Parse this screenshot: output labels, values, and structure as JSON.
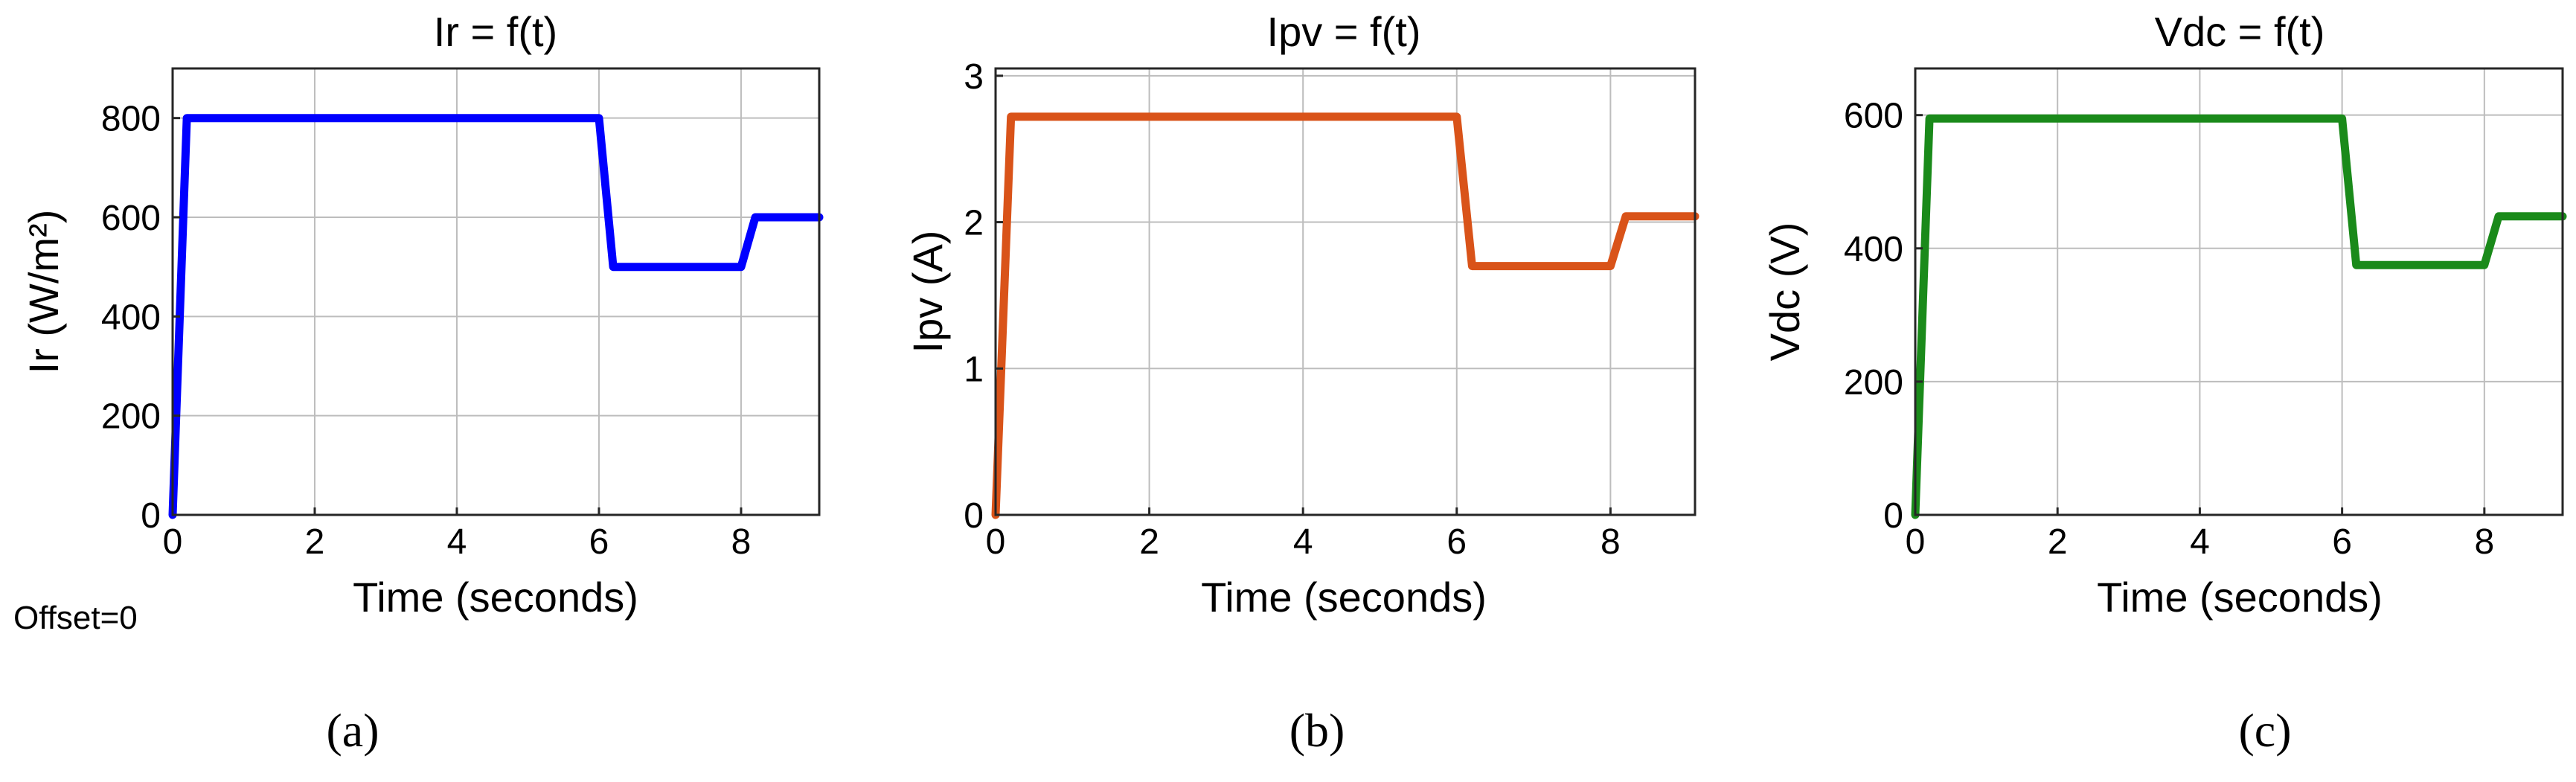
{
  "note": "Offset=0",
  "chart_data": [
    {
      "type": "line",
      "caption": "(a)",
      "title": "Ir = f(t)",
      "xlabel": "Time (seconds)",
      "ylabel": "Ir (W/m²)",
      "xlim": [
        0,
        9.1
      ],
      "ylim": [
        0,
        900
      ],
      "xticks": [
        0,
        2,
        4,
        6,
        8
      ],
      "yticks": [
        0,
        200,
        400,
        600,
        800
      ],
      "grid": true,
      "series": [
        {
          "color": "#0000ff",
          "x": [
            0,
            0.2,
            6.0,
            6.2,
            8.0,
            8.2,
            9.1
          ],
          "y": [
            0,
            800,
            800,
            500,
            500,
            600,
            600
          ]
        }
      ]
    },
    {
      "type": "line",
      "caption": "(b)",
      "title": "Ipv = f(t)",
      "xlabel": "Time (seconds)",
      "ylabel": "Ipv (A)",
      "xlim": [
        0,
        9.1
      ],
      "ylim": [
        0,
        3.05
      ],
      "xticks": [
        0,
        2,
        4,
        6,
        8
      ],
      "yticks": [
        0,
        1,
        2,
        3
      ],
      "grid": true,
      "series": [
        {
          "color": "#d95319",
          "x": [
            0,
            0.2,
            6.0,
            6.2,
            8.0,
            8.2,
            9.1
          ],
          "y": [
            0,
            2.72,
            2.72,
            1.7,
            1.7,
            2.04,
            2.04
          ]
        }
      ]
    },
    {
      "type": "line",
      "caption": "(c)",
      "title": "Vdc = f(t)",
      "xlabel": "Time (seconds)",
      "ylabel": "Vdc (V)",
      "xlim": [
        0,
        9.1
      ],
      "ylim": [
        0,
        670
      ],
      "xticks": [
        0,
        2,
        4,
        6,
        8
      ],
      "yticks": [
        0,
        200,
        400,
        600
      ],
      "grid": true,
      "series": [
        {
          "color": "#1a8a1a",
          "x": [
            0,
            0.2,
            6.0,
            6.2,
            8.0,
            8.2,
            9.1
          ],
          "y": [
            0,
            595,
            595,
            375,
            375,
            448,
            448
          ]
        }
      ]
    }
  ]
}
